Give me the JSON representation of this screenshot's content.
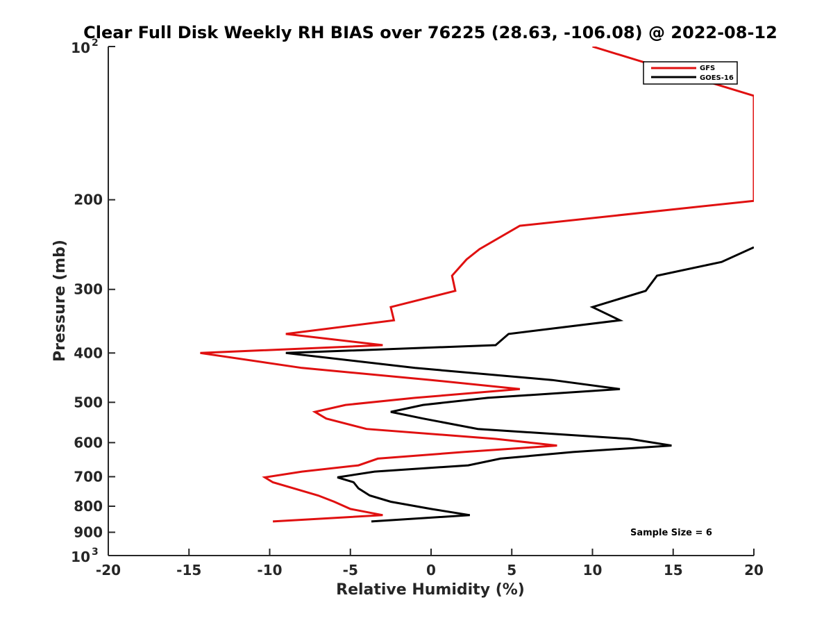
{
  "chart_data": {
    "type": "line",
    "title": "Clear Full Disk Weekly RH BIAS over 76225 (28.63, -106.08) @ 2022-08-12",
    "xlabel": "Relative Humidity (%)",
    "ylabel": "Pressure (mb)",
    "xlim": [
      -20,
      20
    ],
    "ylim": [
      100,
      1000
    ],
    "yscale": "log",
    "yreversed": true,
    "grid": false,
    "legend_position": "top-right",
    "x_ticks": [
      "-20",
      "-15",
      "-10",
      "-5",
      "0",
      "5",
      "10",
      "15",
      "20"
    ],
    "x_tick_values": [
      -20,
      -15,
      -10,
      -5,
      0,
      5,
      10,
      15,
      20
    ],
    "y_ticks": [
      {
        "value": 100,
        "label": "",
        "base": "10",
        "exp": "2"
      },
      {
        "value": 200,
        "label": "200"
      },
      {
        "value": 300,
        "label": "300"
      },
      {
        "value": 400,
        "label": "400"
      },
      {
        "value": 500,
        "label": "500"
      },
      {
        "value": 600,
        "label": "600"
      },
      {
        "value": 700,
        "label": "700"
      },
      {
        "value": 800,
        "label": "800"
      },
      {
        "value": 900,
        "label": "900"
      },
      {
        "value": 1000,
        "label": "",
        "base": "10",
        "exp": "3"
      }
    ],
    "series": [
      {
        "name": "GFS",
        "color": "#e01010",
        "points": [
          [
            10,
            100
          ],
          [
            20,
            125
          ],
          [
            20,
            201
          ],
          [
            5.5,
            225
          ],
          [
            3,
            250
          ],
          [
            2.2,
            262
          ],
          [
            1.3,
            282
          ],
          [
            1.5,
            302
          ],
          [
            -2.5,
            325
          ],
          [
            -2.3,
            345
          ],
          [
            -9,
            367
          ],
          [
            -3,
            386
          ],
          [
            -14.3,
            400
          ],
          [
            -8,
            428
          ],
          [
            0,
            452
          ],
          [
            5.5,
            471
          ],
          [
            -1,
            490
          ],
          [
            -5.3,
            506
          ],
          [
            -7.2,
            522
          ],
          [
            -6.5,
            538
          ],
          [
            -4,
            564
          ],
          [
            4,
            590
          ],
          [
            7.8,
            608
          ],
          [
            2,
            626
          ],
          [
            -3.3,
            645
          ],
          [
            -4.5,
            665
          ],
          [
            -8,
            684
          ],
          [
            -10.3,
            702
          ],
          [
            -9.8,
            718
          ],
          [
            -8.5,
            738
          ],
          [
            -7,
            762
          ],
          [
            -6,
            784
          ],
          [
            -5,
            810
          ],
          [
            -3,
            833
          ],
          [
            -9.8,
            857
          ]
        ]
      },
      {
        "name": "GOES-16",
        "color": "#000000",
        "points": [
          [
            20,
            248
          ],
          [
            18,
            265
          ],
          [
            14,
            282
          ],
          [
            13.3,
            302
          ],
          [
            10,
            325
          ],
          [
            11.7,
            345
          ],
          [
            4.8,
            367
          ],
          [
            4,
            386
          ],
          [
            -9,
            400
          ],
          [
            -1,
            428
          ],
          [
            7.5,
            452
          ],
          [
            11.7,
            471
          ],
          [
            3.5,
            490
          ],
          [
            -0.5,
            506
          ],
          [
            -2.5,
            522
          ],
          [
            -0.5,
            538
          ],
          [
            2.9,
            564
          ],
          [
            12.3,
            590
          ],
          [
            14.9,
            608
          ],
          [
            8.8,
            626
          ],
          [
            4.3,
            645
          ],
          [
            2.3,
            665
          ],
          [
            -3.5,
            684
          ],
          [
            -5.8,
            702
          ],
          [
            -4.8,
            718
          ],
          [
            -4.5,
            738
          ],
          [
            -3.8,
            762
          ],
          [
            -2.5,
            784
          ],
          [
            0,
            810
          ],
          [
            2.4,
            833
          ],
          [
            -3.7,
            857
          ]
        ]
      }
    ],
    "annotation": "Sample Size = 6"
  }
}
